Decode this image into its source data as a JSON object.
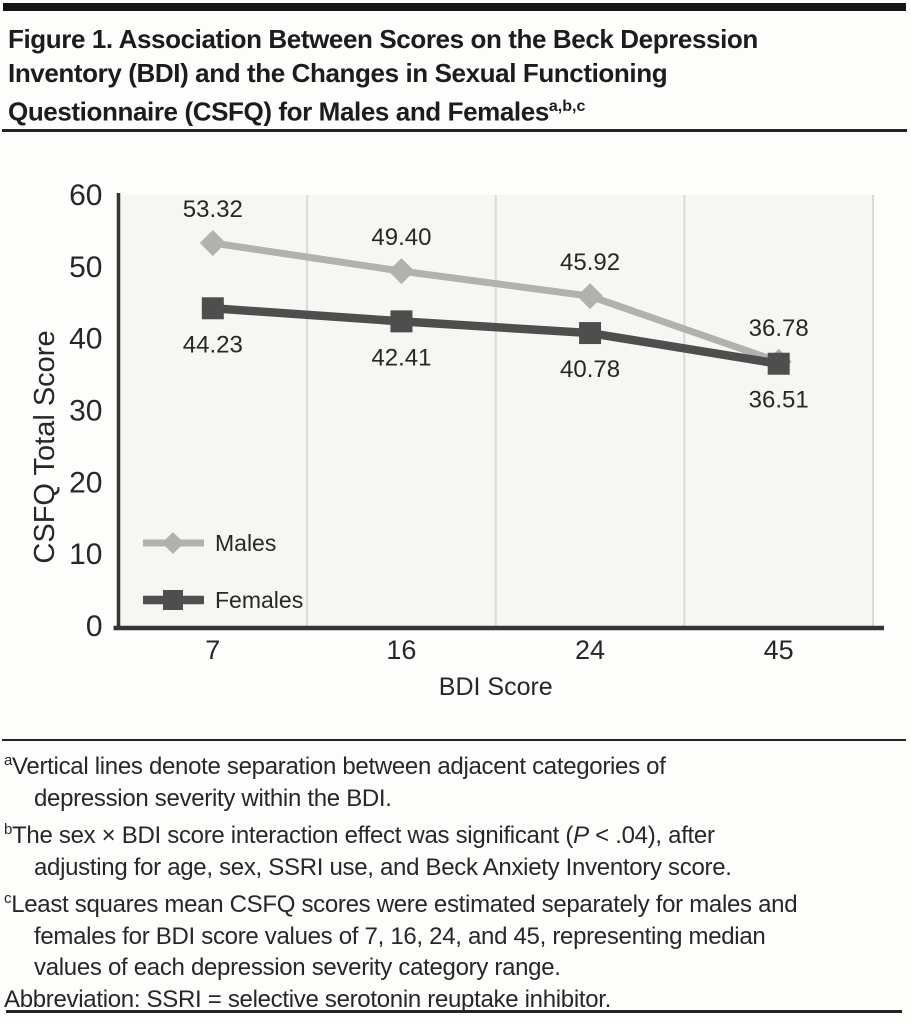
{
  "title": {
    "line1": "Figure 1. Association Between Scores on the Beck Depression",
    "line2": "Inventory (BDI) and the Changes in Sexual Functioning",
    "line3": "Questionnaire (CSFQ) for Males and Females",
    "superscript": "a,b,c"
  },
  "chart_data": {
    "type": "line",
    "categories": [
      "7",
      "16",
      "24",
      "45"
    ],
    "series": [
      {
        "name": "Males",
        "marker": "diamond",
        "color": "#b1b1b0",
        "values": [
          53.32,
          49.4,
          45.92,
          36.78
        ],
        "point_labels": [
          "53.32",
          "49.40",
          "45.92",
          "36.78"
        ],
        "label_position": "above"
      },
      {
        "name": "Females",
        "marker": "square",
        "color": "#4e4e4e",
        "values": [
          44.23,
          42.41,
          40.78,
          36.51
        ],
        "point_labels": [
          "44.23",
          "42.41",
          "40.78",
          "36.51"
        ],
        "label_position": "below"
      }
    ],
    "xlabel": "BDI Score",
    "ylabel": "CSFQ Total Score",
    "ylim": [
      0,
      60
    ],
    "yticks": [
      "0",
      "10",
      "20",
      "30",
      "40",
      "50",
      "60"
    ],
    "grid": "vertical category separator lines",
    "legend_position": "inside lower-left"
  },
  "footnotes": {
    "a": {
      "sup": "a",
      "line1": "Vertical lines denote separation between adjacent categories of",
      "line2": "depression severity within the BDI."
    },
    "b": {
      "sup": "b",
      "line1_pre": "The sex × BDI score interaction effect was significant (",
      "line1_italic": "P",
      "line1_post": " < .04), after",
      "line2": "adjusting for age, sex, SSRI use, and Beck Anxiety Inventory score."
    },
    "c": {
      "sup": "c",
      "line1": "Least squares mean CSFQ scores were estimated separately for males and",
      "line2": "females for BDI score values of 7, 16, 24, and 45, representing median",
      "line3": "values of each depression severity category range."
    },
    "abbreviation": "Abbreviation: SSRI = selective serotonin reuptake inhibitor."
  },
  "colors": {
    "males_series": "#b1b1b0",
    "females_series": "#4e4e4e",
    "axis": "#373435",
    "separator": "#dadad8",
    "text": "#2a2627",
    "rules": "#262324",
    "plot_background": "#f6f6f3"
  }
}
